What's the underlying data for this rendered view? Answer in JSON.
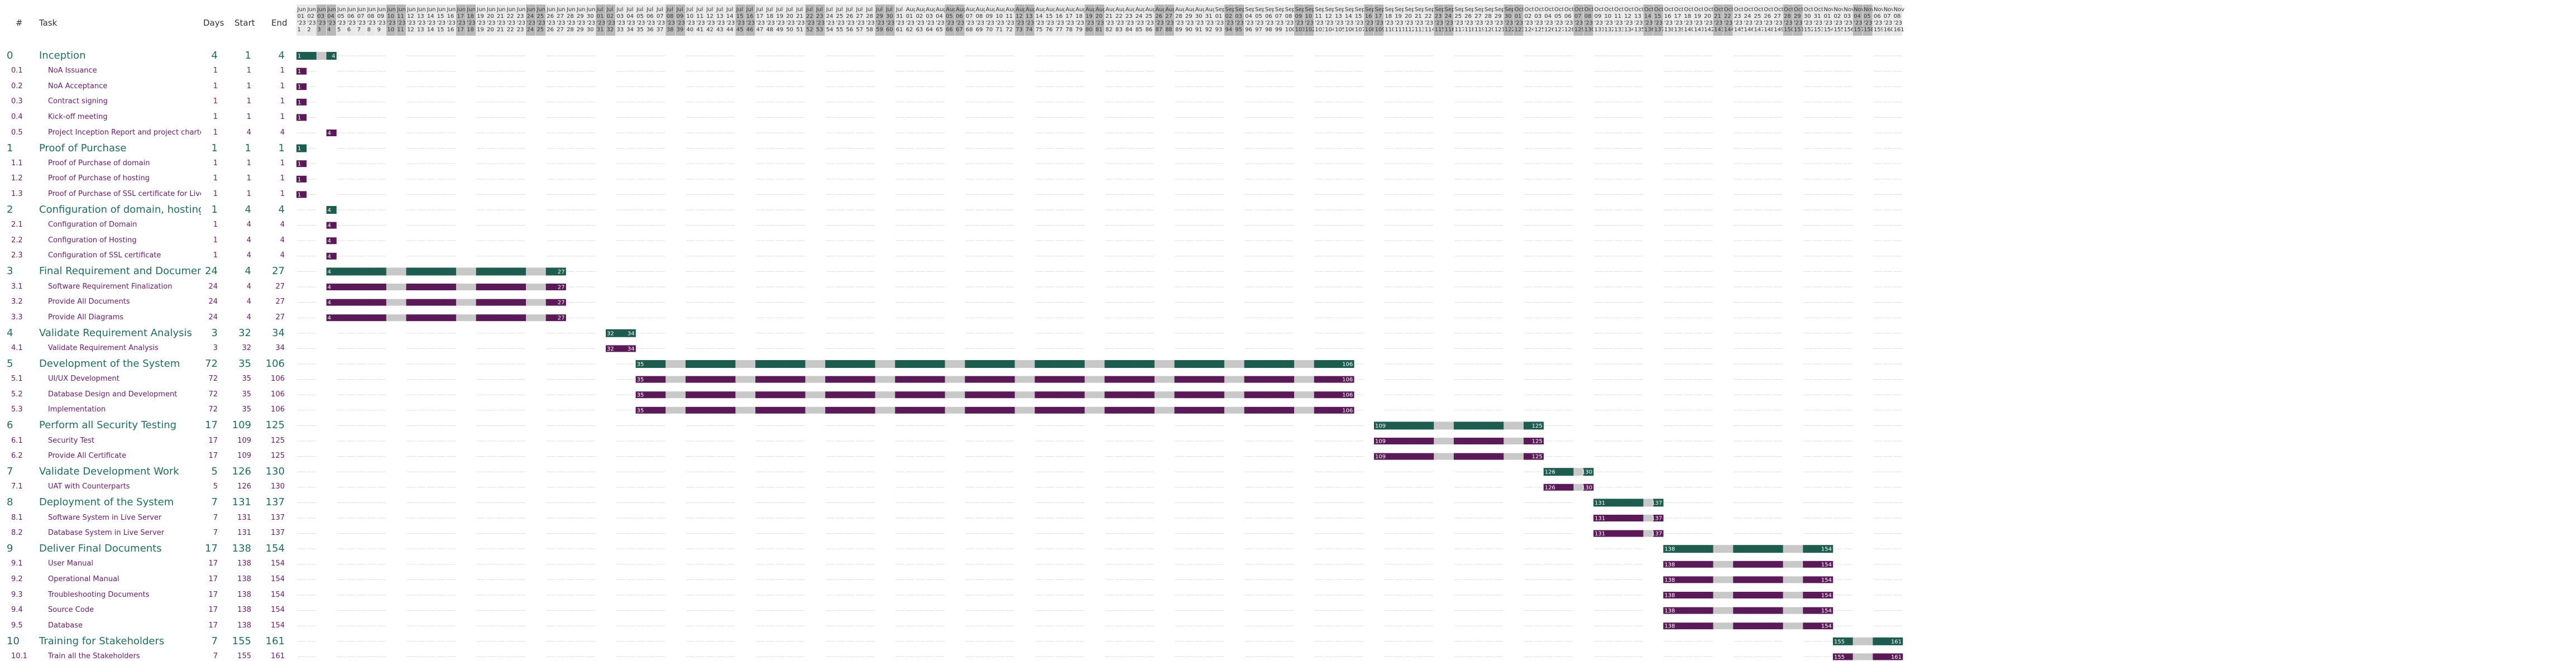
{
  "header": {
    "num": "#",
    "task": "Task",
    "days": "Days",
    "start": "Start",
    "end": "End"
  },
  "colors": {
    "summary": "#1e5c4f",
    "task": "#5a1a57",
    "weekend_bar": "#c8c8c8",
    "weekend_header": "#b8b8b8",
    "header_bg": "#e8e8e8",
    "summary_text": "#1e6e5c",
    "task_text": "#6a1b6b"
  },
  "weekday_labels": [
    "Mo",
    "Tu",
    "We",
    "Th",
    "Fr",
    "Sa",
    "Su"
  ],
  "chart_data": {
    "type": "gantt",
    "day_axis": {
      "first_day": 1,
      "last_day": 161,
      "first_date_month": "Jun",
      "first_date_day": 1,
      "year_suffix": "'23",
      "weekend_days": [
        6,
        7
      ]
    },
    "month_names": [
      "Jun",
      "Jul",
      "Aug",
      "Sep",
      "Oct",
      "Nov"
    ],
    "month_lengths": [
      30,
      31,
      31,
      30,
      31,
      30
    ],
    "rows": [
      {
        "num": "0",
        "task": "Inception",
        "days": "4",
        "start": "1",
        "end": "4",
        "level": 0
      },
      {
        "num": "0.1",
        "task": "NoA Issuance",
        "days": "1",
        "start": "1",
        "end": "1",
        "level": 1
      },
      {
        "num": "0.2",
        "task": "NoA Acceptance",
        "days": "1",
        "start": "1",
        "end": "1",
        "level": 1
      },
      {
        "num": "0.3",
        "task": "Contract signing",
        "days": "1",
        "start": "1",
        "end": "1",
        "level": 1
      },
      {
        "num": "0.4",
        "task": "Kick-off meeting",
        "days": "1",
        "start": "1",
        "end": "1",
        "level": 1
      },
      {
        "num": "0.5",
        "task": "Project Inception Report and project charter",
        "days": "1",
        "start": "4",
        "end": "4",
        "level": 1
      },
      {
        "num": "1",
        "task": "Proof of Purchase",
        "days": "1",
        "start": "1",
        "end": "1",
        "level": 0
      },
      {
        "num": "1.1",
        "task": "Proof of Purchase of domain",
        "days": "1",
        "start": "1",
        "end": "1",
        "level": 1
      },
      {
        "num": "1.2",
        "task": "Proof of Purchase of hosting",
        "days": "1",
        "start": "1",
        "end": "1",
        "level": 1
      },
      {
        "num": "1.3",
        "task": "Proof of Purchase of SSL certificate for Live Ser",
        "days": "1",
        "start": "1",
        "end": "1",
        "level": 1
      },
      {
        "num": "2",
        "task": "Configuration of domain, hosting, and S",
        "days": "1",
        "start": "4",
        "end": "4",
        "level": 0
      },
      {
        "num": "2.1",
        "task": "Configuration of Domain",
        "days": "1",
        "start": "4",
        "end": "4",
        "level": 1
      },
      {
        "num": "2.2",
        "task": "Configuration of Hosting",
        "days": "1",
        "start": "4",
        "end": "4",
        "level": 1
      },
      {
        "num": "2.3",
        "task": "Configuration of SSL certificate",
        "days": "1",
        "start": "4",
        "end": "4",
        "level": 1
      },
      {
        "num": "3",
        "task": "Final Requirement and Documents",
        "days": "24",
        "start": "4",
        "end": "27",
        "level": 0
      },
      {
        "num": "3.1",
        "task": "Software Requirement Finalization",
        "days": "24",
        "start": "4",
        "end": "27",
        "level": 1
      },
      {
        "num": "3.2",
        "task": "Provide All Documents",
        "days": "24",
        "start": "4",
        "end": "27",
        "level": 1
      },
      {
        "num": "3.3",
        "task": "Provide All Diagrams",
        "days": "24",
        "start": "4",
        "end": "27",
        "level": 1
      },
      {
        "num": "4",
        "task": "Validate Requirement Analysis",
        "days": "3",
        "start": "32",
        "end": "34",
        "level": 0
      },
      {
        "num": "4.1",
        "task": "Validate Requirement Analysis",
        "days": "3",
        "start": "32",
        "end": "34",
        "level": 1
      },
      {
        "num": "5",
        "task": "Development of the System",
        "days": "72",
        "start": "35",
        "end": "106",
        "level": 0
      },
      {
        "num": "5.1",
        "task": "UI/UX Development",
        "days": "72",
        "start": "35",
        "end": "106",
        "level": 1
      },
      {
        "num": "5.2",
        "task": "Database Design and Development",
        "days": "72",
        "start": "35",
        "end": "106",
        "level": 1
      },
      {
        "num": "5.3",
        "task": "Implementation",
        "days": "72",
        "start": "35",
        "end": "106",
        "level": 1
      },
      {
        "num": "6",
        "task": "Perform all Security Testing",
        "days": "17",
        "start": "109",
        "end": "125",
        "level": 0
      },
      {
        "num": "6.1",
        "task": "Security Test",
        "days": "17",
        "start": "109",
        "end": "125",
        "level": 1
      },
      {
        "num": "6.2",
        "task": "Provide All Certificate",
        "days": "17",
        "start": "109",
        "end": "125",
        "level": 1
      },
      {
        "num": "7",
        "task": "Validate Development Work",
        "days": "5",
        "start": "126",
        "end": "130",
        "level": 0
      },
      {
        "num": "7.1",
        "task": "UAT with Counterparts",
        "days": "5",
        "start": "126",
        "end": "130",
        "level": 1
      },
      {
        "num": "8",
        "task": "Deployment of the System",
        "days": "7",
        "start": "131",
        "end": "137",
        "level": 0
      },
      {
        "num": "8.1",
        "task": "Software System in Live Server",
        "days": "7",
        "start": "131",
        "end": "137",
        "level": 1
      },
      {
        "num": "8.2",
        "task": "Database System in Live Server",
        "days": "7",
        "start": "131",
        "end": "137",
        "level": 1
      },
      {
        "num": "9",
        "task": "Deliver Final Documents",
        "days": "17",
        "start": "138",
        "end": "154",
        "level": 0
      },
      {
        "num": "9.1",
        "task": "User Manual",
        "days": "17",
        "start": "138",
        "end": "154",
        "level": 1
      },
      {
        "num": "9.2",
        "task": "Operational Manual",
        "days": "17",
        "start": "138",
        "end": "154",
        "level": 1
      },
      {
        "num": "9.3",
        "task": "Troubleshooting Documents",
        "days": "17",
        "start": "138",
        "end": "154",
        "level": 1
      },
      {
        "num": "9.4",
        "task": "Source Code",
        "days": "17",
        "start": "138",
        "end": "154",
        "level": 1
      },
      {
        "num": "9.5",
        "task": "Database",
        "days": "17",
        "start": "138",
        "end": "154",
        "level": 1
      },
      {
        "num": "10",
        "task": "Training for Stakeholders",
        "days": "7",
        "start": "155",
        "end": "161",
        "level": 0
      },
      {
        "num": "10.1",
        "task": "Train all the Stakeholders",
        "days": "7",
        "start": "155",
        "end": "161",
        "level": 1
      }
    ]
  }
}
